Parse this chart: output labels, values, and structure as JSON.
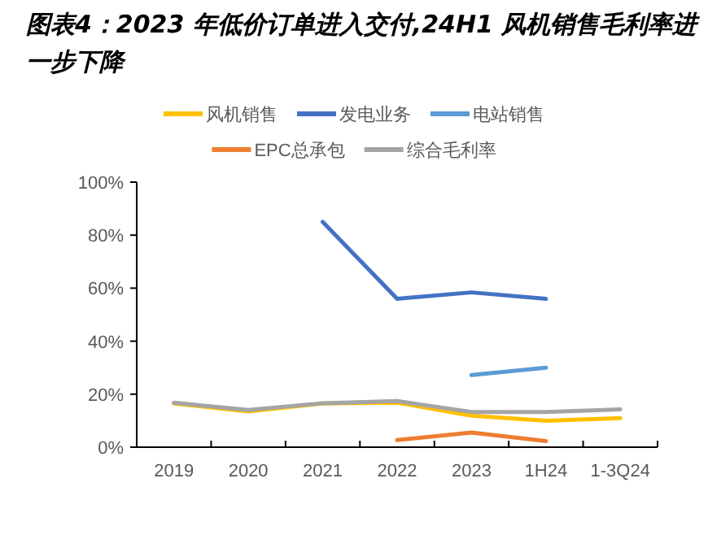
{
  "chart_data": {
    "type": "line",
    "title": "图表4：2023 年低价订单进入交付,24H1 风机销售毛利率进一步下降",
    "categories": [
      "2019",
      "2020",
      "2021",
      "2022",
      "2023",
      "1H24",
      "1-3Q24"
    ],
    "series": [
      {
        "name": "风机销售",
        "color": "#ffc000",
        "values": [
          16.5,
          13.5,
          16.5,
          16.8,
          11.9,
          10,
          11
        ]
      },
      {
        "name": "发电业务",
        "color": "#4472c4",
        "values": [
          null,
          null,
          85,
          56,
          58.4,
          56,
          null
        ]
      },
      {
        "name": "电站销售",
        "color": "#5b9bd5",
        "values": [
          null,
          null,
          null,
          null,
          27.2,
          30,
          null
        ]
      },
      {
        "name": "EPC总承包",
        "color": "#ed7d31",
        "values": [
          null,
          null,
          null,
          2.7,
          5.5,
          2.3,
          null
        ]
      },
      {
        "name": "综合毛利率",
        "color": "#a5a5a5",
        "values": [
          16.8,
          14,
          16.6,
          17.4,
          13.3,
          13.3,
          14.3
        ]
      }
    ],
    "ylim": [
      0,
      100
    ],
    "yticks": [
      {
        "value": 0,
        "label": "0%"
      },
      {
        "value": 20,
        "label": "20%"
      },
      {
        "value": 40,
        "label": "40%"
      },
      {
        "value": 60,
        "label": "60%"
      },
      {
        "value": 80,
        "label": "80%"
      },
      {
        "value": 100,
        "label": "100%"
      }
    ],
    "grid": false,
    "legend": "top",
    "marker": "none",
    "line_style": "solid"
  }
}
